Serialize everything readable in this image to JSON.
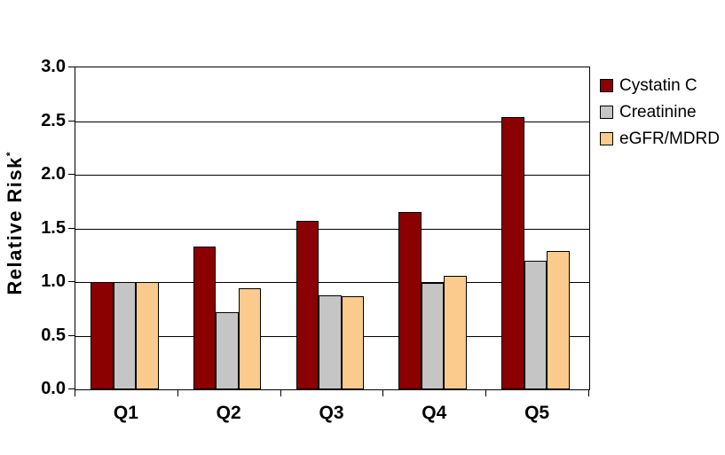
{
  "chart_data": {
    "type": "bar",
    "title": "",
    "ylabel": "Relative Risk",
    "ylabel_superscript": "*",
    "xlabel": "",
    "categories": [
      "Q1",
      "Q2",
      "Q3",
      "Q4",
      "Q5"
    ],
    "series": [
      {
        "name": "Cystatin C",
        "color": "#8B0000",
        "values": [
          1.0,
          1.33,
          1.57,
          1.65,
          2.54
        ]
      },
      {
        "name": "Creatinine",
        "color": "#C5C5C5",
        "values": [
          1.0,
          0.72,
          0.88,
          0.99,
          1.2
        ]
      },
      {
        "name": "eGFR/MDRD",
        "color": "#FBCA8D",
        "values": [
          1.0,
          0.94,
          0.87,
          1.06,
          1.29
        ]
      }
    ],
    "ylim": [
      0.0,
      3.0
    ],
    "ytick_step": 0.5,
    "ytick_labels": [
      "0.0",
      "0.5",
      "1.0",
      "1.5",
      "2.0",
      "2.5",
      "3.0"
    ],
    "grid": true,
    "gridline_color": "#000000",
    "axis_color": "#000000",
    "background_color": "#FFFFFF",
    "legend_position": "right"
  }
}
